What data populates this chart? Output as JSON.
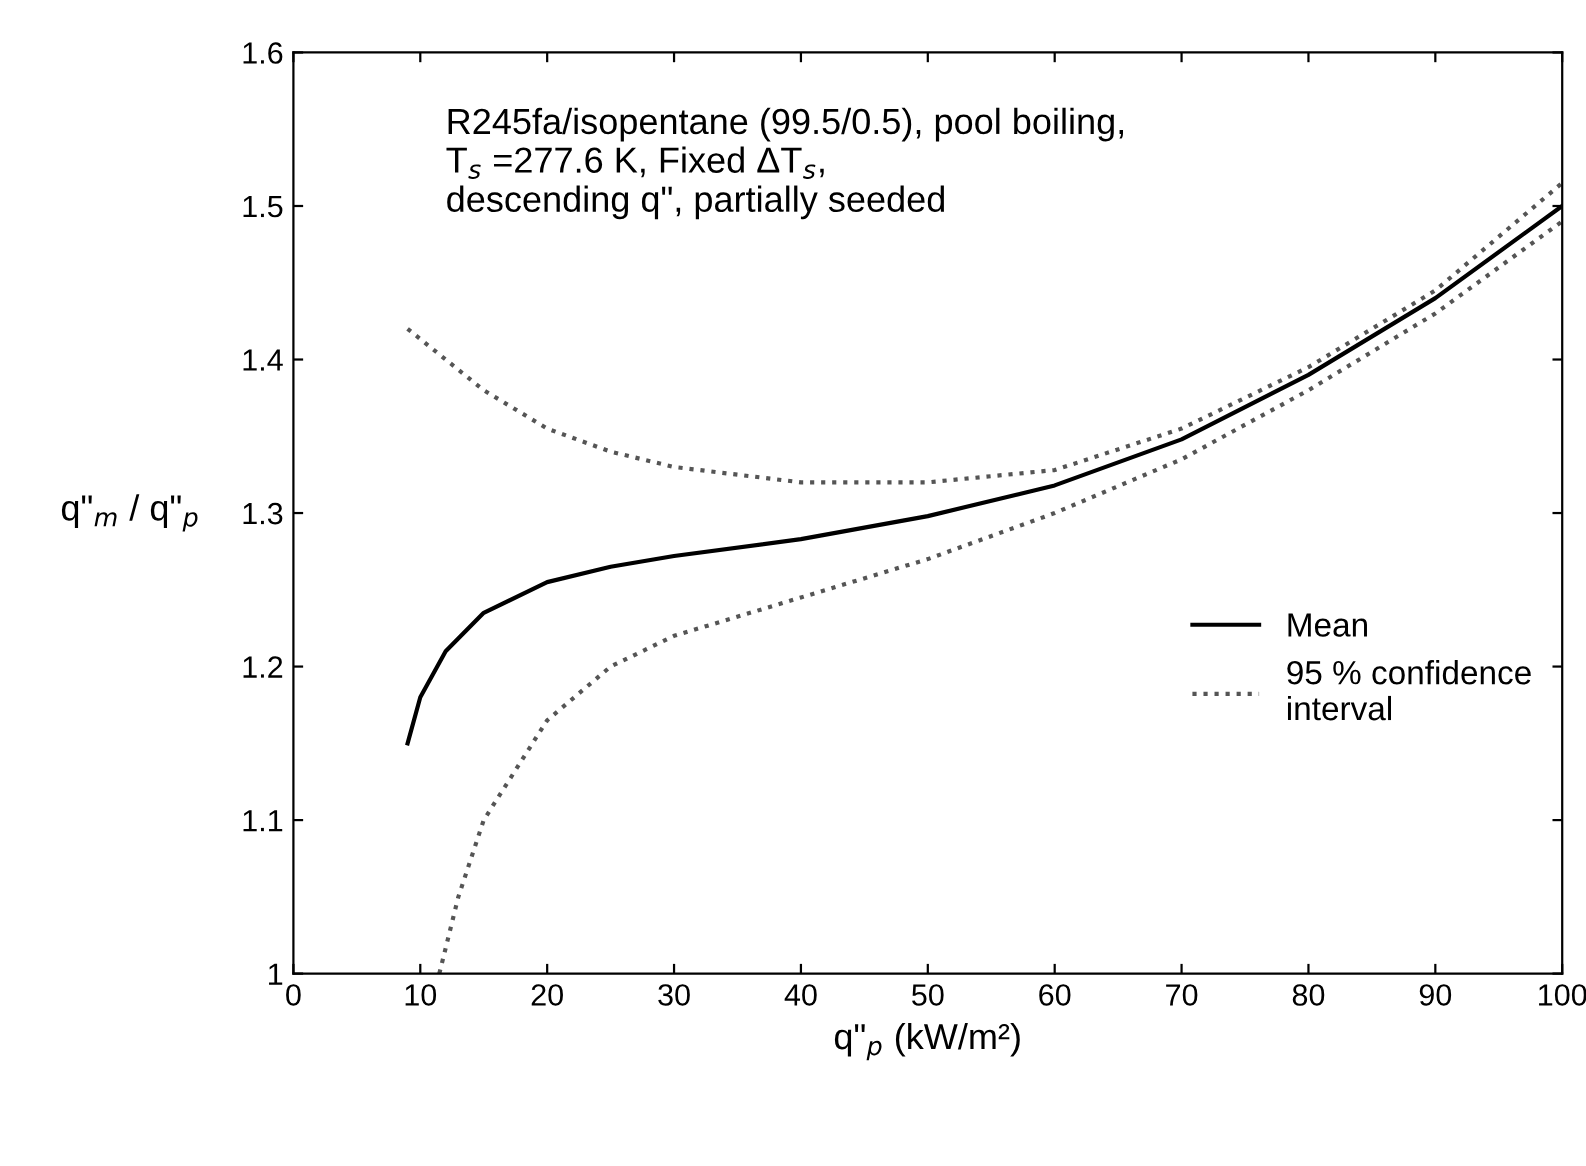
{
  "chart_data": {
    "type": "line",
    "xlabel": "q\"$_{p}$ (kW/m²)",
    "ylabel": "q\"$_{m}$ / q\"$_{p}$",
    "annotations": [
      "R245fa/isopentane (99.5/0.5), pool boiling,\nT$_{s}$ =277.6 K, Fixed ΔT$_{s}$,\ndescending q\", partially seeded"
    ],
    "series": [
      {
        "name": "Mean",
        "color": "#000000",
        "line_style": "solid",
        "x": [
          9,
          10,
          12,
          15,
          20,
          25,
          30,
          40,
          50,
          60,
          70,
          80,
          90,
          100
        ],
        "values": [
          1.15,
          1.18,
          1.21,
          1.235,
          1.255,
          1.265,
          1.272,
          1.283,
          1.298,
          1.318,
          1.348,
          1.39,
          1.44,
          1.5
        ]
      },
      {
        "name": "95 % confidence\ninterval",
        "color": "#555555",
        "line_style": "dotted",
        "x": [
          9,
          12,
          15,
          20,
          25,
          30,
          40,
          50,
          60,
          70,
          80,
          90,
          100
        ],
        "values": [
          1.42,
          1.4,
          1.38,
          1.355,
          1.34,
          1.33,
          1.32,
          1.32,
          1.328,
          1.355,
          1.395,
          1.445,
          1.515
        ]
      },
      {
        "color": "#555555",
        "line_style": "dotted",
        "x": [
          11.5,
          13,
          15,
          20,
          25,
          30,
          40,
          50,
          60,
          70,
          80,
          90,
          100
        ],
        "values": [
          1.0,
          1.05,
          1.1,
          1.165,
          1.2,
          1.22,
          1.245,
          1.27,
          1.3,
          1.335,
          1.38,
          1.43,
          1.49
        ]
      }
    ],
    "xlim": [
      0,
      100
    ],
    "ylim": [
      1,
      1.6
    ],
    "xticks": [
      0,
      10,
      20,
      30,
      40,
      50,
      60,
      70,
      80,
      90,
      100
    ],
    "yticks": [
      1,
      {
        "value": 1.1,
        "label": "1.1"
      },
      {
        "value": 1.2,
        "label": "1.2"
      },
      {
        "value": 1.3,
        "label": "1.3"
      },
      {
        "value": 1.4,
        "label": "1.4"
      },
      {
        "value": 1.5,
        "label": "1.5"
      },
      {
        "value": 1.6,
        "label": "1.6"
      }
    ],
    "grid": false,
    "legend": "center right",
    "marker": "none"
  }
}
